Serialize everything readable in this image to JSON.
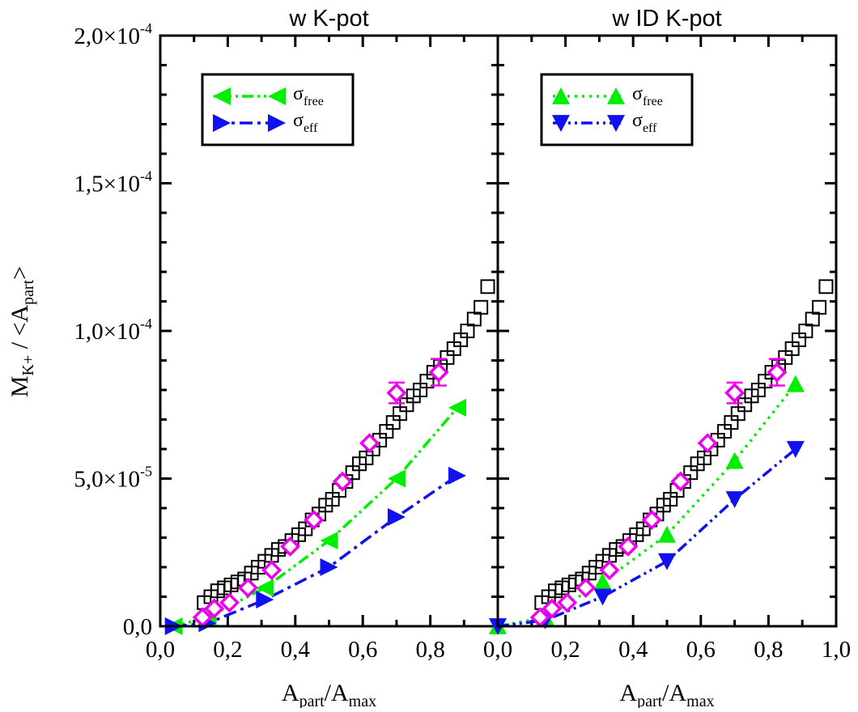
{
  "chart_data": {
    "type": "scatter",
    "ylabel": {
      "main": "M",
      "sub1": "K+",
      "mid": " / <A",
      "sub2": "part",
      "end": ">"
    },
    "xlabel": {
      "main": "A",
      "sub1": "part",
      "mid": "/A",
      "sub2": "max"
    },
    "ylim": [
      0,
      0.0002
    ],
    "xlim": [
      0,
      1.0
    ],
    "x_ticks": [
      "0,0",
      "0,2",
      "0,4",
      "0,6",
      "0,8"
    ],
    "x_ticks_last_panel_extra": "1,0",
    "y_ticks": [
      {
        "mant": "0,0",
        "exp": ""
      },
      {
        "mant": "5,0×10",
        "exp": "-5"
      },
      {
        "mant": "1,0×10",
        "exp": "-4"
      },
      {
        "mant": "1,5×10",
        "exp": "-4"
      },
      {
        "mant": "2,0×10",
        "exp": "-4"
      }
    ],
    "colors": {
      "free": "#00ee00",
      "eff": "#1111ee",
      "exp": "#ee00ee",
      "ref": "#000000"
    },
    "panels": [
      {
        "title": "w K-pot",
        "legend": [
          {
            "sym": "σ",
            "sub": "free",
            "marker": "triangle-left",
            "line": "dash-dot-dot",
            "color_key": "free"
          },
          {
            "sym": "σ",
            "sub": "eff",
            "marker": "triangle-right",
            "line": "dash-dot",
            "color_key": "eff"
          }
        ],
        "series": [
          {
            "key": "free",
            "marker": "triangle-left",
            "line": "dash-dot-dot",
            "x": [
              0.04,
              0.14,
              0.31,
              0.5,
              0.7,
              0.88
            ],
            "y": [
              0.0,
              3e-06,
              1.3e-05,
              2.9e-05,
              5e-05,
              7.4e-05
            ]
          },
          {
            "key": "eff",
            "marker": "triangle-right",
            "line": "dash-dot",
            "x": [
              0.04,
              0.14,
              0.31,
              0.5,
              0.7,
              0.88
            ],
            "y": [
              0.0,
              1e-06,
              9e-06,
              2e-05,
              3.7e-05,
              5.1e-05
            ]
          }
        ]
      },
      {
        "title": "w ID K-pot",
        "legend": [
          {
            "sym": "σ",
            "sub": "free",
            "marker": "triangle-up",
            "line": "dotted",
            "color_key": "free"
          },
          {
            "sym": "σ",
            "sub": "eff",
            "marker": "triangle-down",
            "line": "dash-dot-dot",
            "color_key": "eff"
          }
        ],
        "series": [
          {
            "key": "free",
            "marker": "triangle-up",
            "line": "dotted",
            "x": [
              0.0,
              0.14,
              0.31,
              0.5,
              0.7,
              0.88
            ],
            "y": [
              0.0,
              3e-06,
              1.5e-05,
              3.1e-05,
              5.6e-05,
              8.2e-05
            ]
          },
          {
            "key": "eff",
            "marker": "triangle-down",
            "line": "dash-dot-dot",
            "x": [
              0.0,
              0.14,
              0.31,
              0.5,
              0.7,
              0.88
            ],
            "y": [
              0.0,
              2e-06,
              1e-05,
              2.2e-05,
              4.3e-05,
              6e-05
            ]
          }
        ]
      }
    ],
    "reference_squares": {
      "x": [
        0.13,
        0.15,
        0.17,
        0.19,
        0.21,
        0.23,
        0.25,
        0.27,
        0.29,
        0.31,
        0.33,
        0.35,
        0.37,
        0.39,
        0.41,
        0.43,
        0.45,
        0.47,
        0.49,
        0.51,
        0.53,
        0.55,
        0.57,
        0.59,
        0.61,
        0.63,
        0.65,
        0.67,
        0.69,
        0.71,
        0.73,
        0.75,
        0.77,
        0.79,
        0.81,
        0.83,
        0.85,
        0.87,
        0.89,
        0.91,
        0.93,
        0.95,
        0.97
      ],
      "y": [
        8e-06,
        1e-05,
        1.2e-05,
        1.3e-05,
        1.4e-05,
        1.5e-05,
        1.6e-05,
        1.8e-05,
        2e-05,
        2.2e-05,
        2.4e-05,
        2.6e-05,
        2.7e-05,
        2.9e-05,
        3.1e-05,
        3.3e-05,
        3.6e-05,
        3.8e-05,
        4.1e-05,
        4.3e-05,
        4.6e-05,
        4.9e-05,
        5.2e-05,
        5.5e-05,
        5.7e-05,
        6e-05,
        6.3e-05,
        6.6e-05,
        6.9e-05,
        7.2e-05,
        7.5e-05,
        7.8e-05,
        8e-05,
        8.3e-05,
        8.6e-05,
        8.8e-05,
        9.1e-05,
        9.4e-05,
        9.7e-05,
        0.0001,
        0.000104,
        0.000108,
        0.000115
      ]
    },
    "experimental_diamonds": {
      "x": [
        0.125,
        0.16,
        0.205,
        0.26,
        0.33,
        0.385,
        0.455,
        0.54,
        0.62,
        0.7,
        0.825
      ],
      "y": [
        3e-06,
        6e-06,
        8e-06,
        1.3e-05,
        1.9e-05,
        2.7e-05,
        3.6e-05,
        4.9e-05,
        6.2e-05,
        7.9e-05,
        8.6e-05
      ],
      "err": [
        0.0,
        0.0,
        0.0,
        0.0,
        0.0,
        0.0,
        0.0,
        0.0,
        0.0,
        0.0035,
        0.0045
      ]
    }
  }
}
